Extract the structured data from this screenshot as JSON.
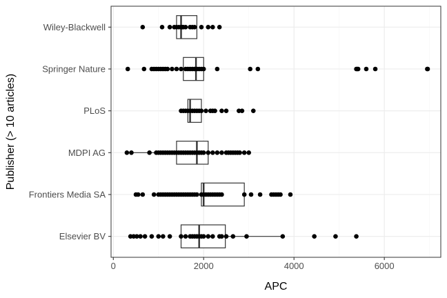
{
  "chart_data": {
    "type": "boxplot",
    "orientation": "horizontal",
    "xlabel": "APC",
    "ylabel": "Publisher (> 10 articles)",
    "xlim": [
      -50,
      7250
    ],
    "x_ticks": [
      0,
      2000,
      4000,
      6000
    ],
    "x_tick_labels": [
      "0",
      "2000",
      "4000",
      "6000"
    ],
    "grid": true,
    "theme": "bw",
    "colors": {
      "box": "#333333",
      "points": "#000000",
      "grid_major": "#ebebeb",
      "grid_minor": "#f5f5f5",
      "panel_border": "#333333"
    },
    "categories": [
      "Wiley-Blackwell",
      "Springer Nature",
      "PLoS",
      "MDPI AG",
      "Frontiers Media SA",
      "Elsevier BV"
    ],
    "boxes": [
      {
        "category": "Wiley-Blackwell",
        "whisker_low": 1400,
        "q1": 1400,
        "median": 1500,
        "q3": 1850,
        "whisker_high": 1850
      },
      {
        "category": "Springer Nature",
        "whisker_low": 1550,
        "q1": 1550,
        "median": 1830,
        "q3": 2000,
        "whisker_high": 2000
      },
      {
        "category": "PLoS",
        "whisker_low": 1650,
        "q1": 1650,
        "median": 1700,
        "q3": 1950,
        "whisker_high": 1950
      },
      {
        "category": "MDPI AG",
        "whisker_low": 300,
        "q1": 1400,
        "median": 1850,
        "q3": 2100,
        "whisker_high": 3000
      },
      {
        "category": "Frontiers Media SA",
        "whisker_low": 1950,
        "q1": 1950,
        "median": 2000,
        "q3": 2900,
        "whisker_high": 2900
      },
      {
        "category": "Elsevier BV",
        "whisker_low": 1500,
        "q1": 1500,
        "median": 1900,
        "q3": 2480,
        "whisker_high": 3750
      }
    ],
    "points": [
      {
        "category": "Wiley-Blackwell",
        "values": [
          650,
          1080,
          1250,
          1350,
          1400,
          1450,
          1500,
          1530,
          1550,
          1600,
          1700,
          1750,
          1800,
          1950,
          2100,
          2200,
          2350
        ]
      },
      {
        "category": "Springer Nature",
        "values": [
          320,
          680,
          850,
          900,
          950,
          1000,
          1050,
          1100,
          1150,
          1200,
          1300,
          1400,
          1500,
          1600,
          1650,
          1700,
          1750,
          1800,
          1850,
          1900,
          1950,
          2000,
          2300,
          3030,
          3200,
          5380,
          5400,
          5420,
          5600,
          5800,
          6950,
          6960
        ]
      },
      {
        "category": "PLoS",
        "values": [
          1500,
          1550,
          1600,
          1650,
          1700,
          1750,
          1800,
          1850,
          1900,
          1950,
          2050,
          2150,
          2200,
          2250,
          2400,
          2500,
          2780,
          2850,
          3100
        ]
      },
      {
        "category": "MDPI AG",
        "values": [
          300,
          400,
          800,
          950,
          1000,
          1050,
          1100,
          1150,
          1200,
          1250,
          1300,
          1350,
          1400,
          1450,
          1500,
          1550,
          1600,
          1650,
          1700,
          1750,
          1800,
          1850,
          1900,
          1950,
          2000,
          2100,
          2200,
          2300,
          2400,
          2500,
          2550,
          2600,
          2650,
          2700,
          2750,
          2800,
          2900,
          3000
        ]
      },
      {
        "category": "Frontiers Media SA",
        "values": [
          500,
          550,
          650,
          900,
          1000,
          1050,
          1100,
          1150,
          1200,
          1250,
          1300,
          1350,
          1400,
          1450,
          1500,
          1550,
          1600,
          1650,
          1700,
          1750,
          1800,
          1850,
          1950,
          2000,
          2050,
          2100,
          2150,
          2200,
          2250,
          2300,
          2350,
          2400,
          2900,
          3050,
          3250,
          3500,
          3550,
          3600,
          3650,
          3700,
          3920
        ]
      },
      {
        "category": "Elsevier BV",
        "values": [
          380,
          450,
          520,
          600,
          700,
          850,
          1000,
          1100,
          1250,
          1500,
          1600,
          1700,
          1750,
          1800,
          1850,
          1900,
          1950,
          2000,
          2100,
          2200,
          2350,
          2400,
          2500,
          2650,
          2950,
          3750,
          4450,
          4920,
          5380
        ]
      }
    ]
  }
}
